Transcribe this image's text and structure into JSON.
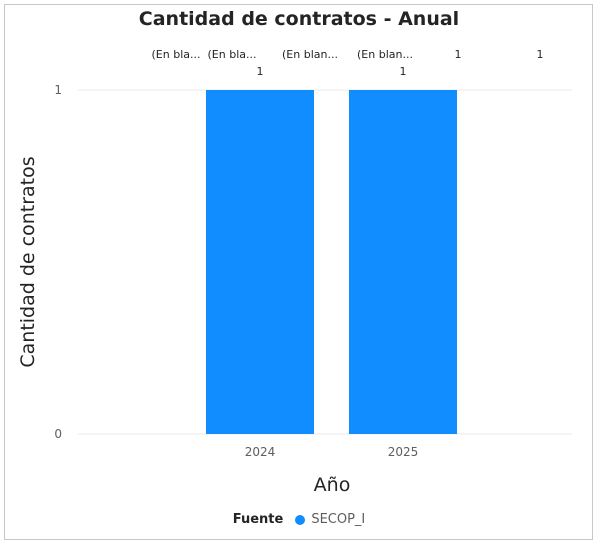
{
  "chart_data": {
    "type": "bar",
    "title": "Cantidad de contratos - Anual",
    "xlabel": "Año",
    "ylabel": "Cantidad de contratos",
    "categories": [
      "2024",
      "2025"
    ],
    "series": [
      {
        "name": "SECOP_I",
        "values": [
          1,
          1
        ],
        "color": "#118DFF"
      }
    ],
    "ylim": [
      0,
      1
    ],
    "y_ticks": [
      "0",
      "1"
    ],
    "grid": true,
    "data_labels": [
      "1",
      "1"
    ],
    "top_labels": [
      "(En bla...",
      "(En bla...",
      "(En blan...",
      "(En blan...",
      "1",
      "1"
    ],
    "legend": {
      "title": "Fuente",
      "position": "bottom"
    }
  }
}
